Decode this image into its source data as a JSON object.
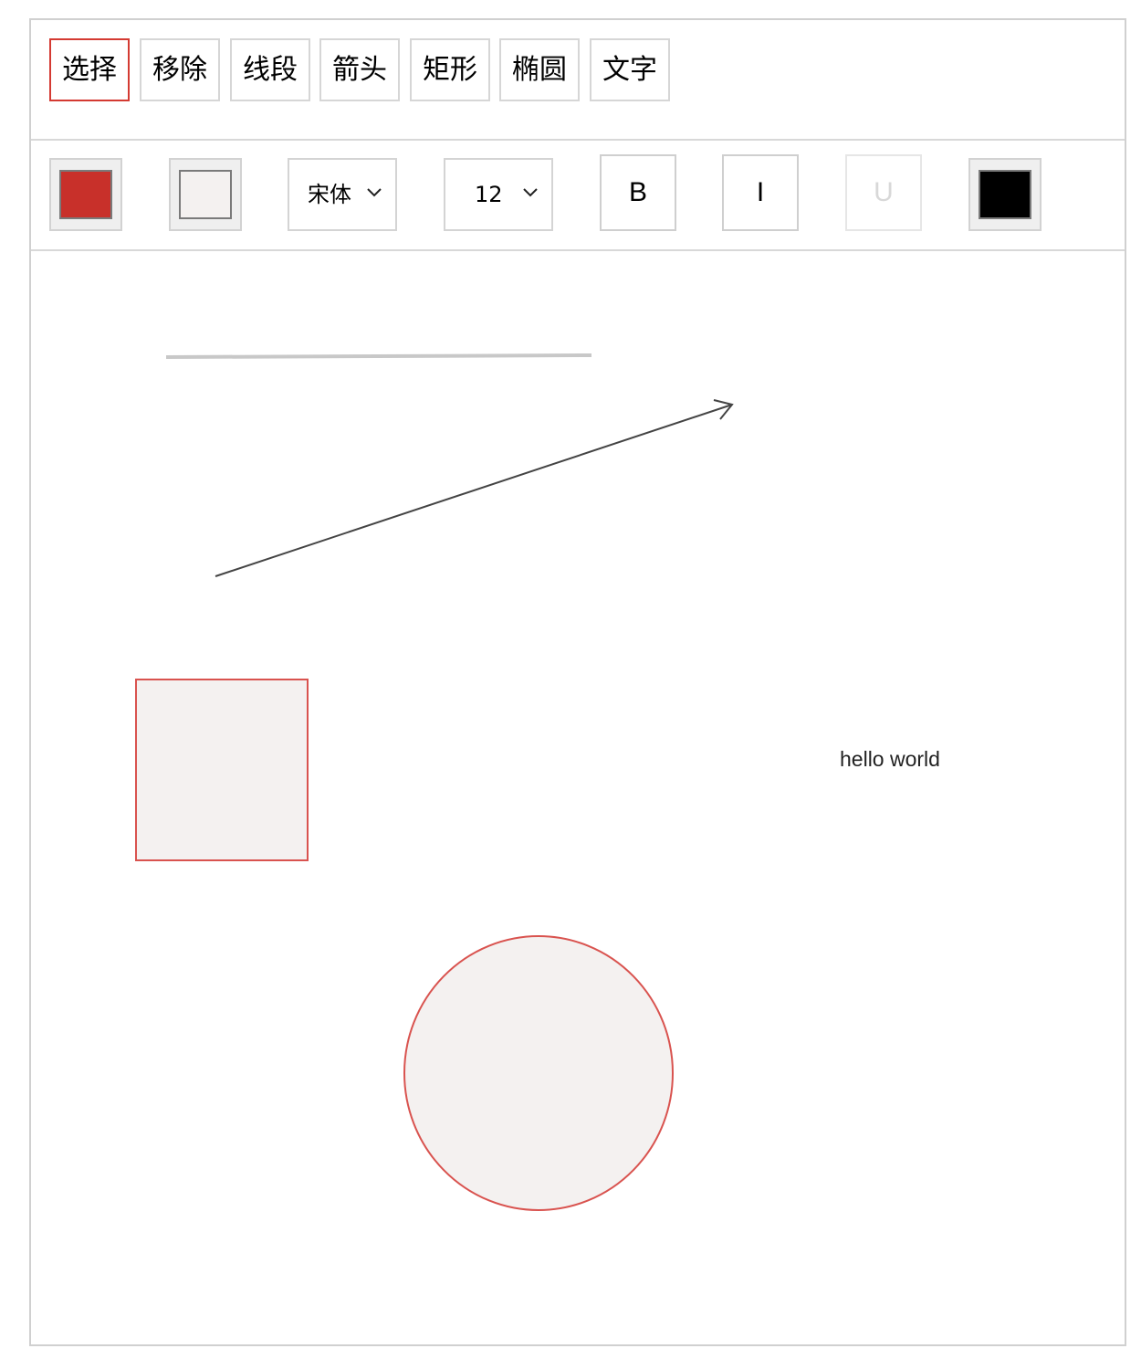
{
  "tools": [
    {
      "label": "选择",
      "active": true
    },
    {
      "label": "移除",
      "active": false
    },
    {
      "label": "线段",
      "active": false
    },
    {
      "label": "箭头",
      "active": false
    },
    {
      "label": "矩形",
      "active": false
    },
    {
      "label": "椭圆",
      "active": false
    },
    {
      "label": "文字",
      "active": false
    }
  ],
  "style": {
    "stroke_color": "#c8302a",
    "fill_color": "#f4f1f0",
    "font_family": "宋体",
    "font_size": "12",
    "bold_label": "B",
    "italic_label": "I",
    "underline_label": "U",
    "text_color": "#000000"
  },
  "canvas": {
    "text_item": "hello world",
    "shape_stroke": "#d9534f",
    "shape_fill": "#f4f1f0",
    "line_color": "#c8c8c8",
    "arrow_color": "#444444"
  }
}
